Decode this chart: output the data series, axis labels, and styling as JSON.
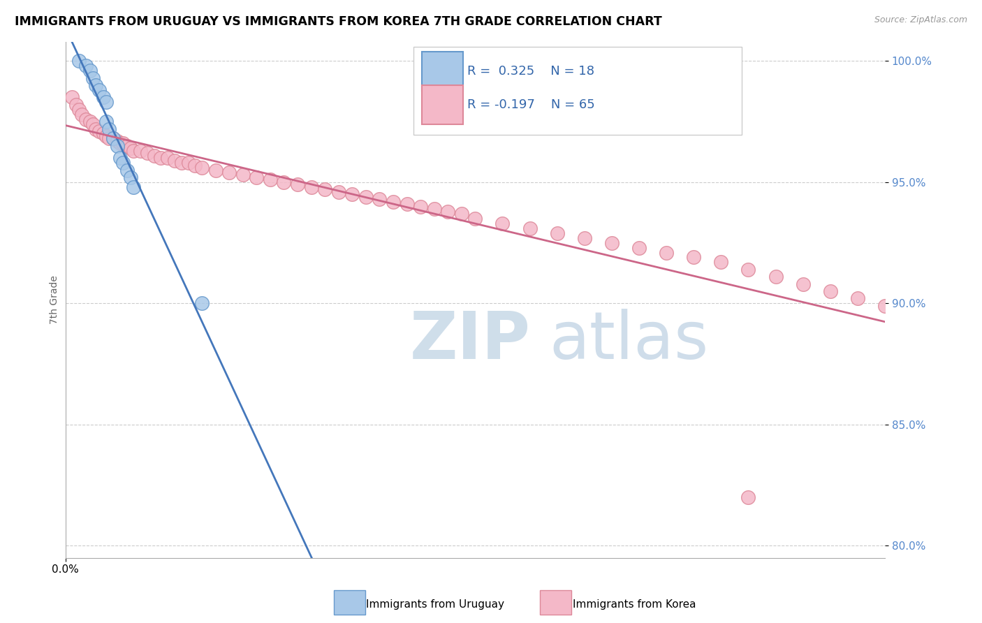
{
  "title": "IMMIGRANTS FROM URUGUAY VS IMMIGRANTS FROM KOREA 7TH GRADE CORRELATION CHART",
  "source_text": "Source: ZipAtlas.com",
  "ylabel": "7th Grade",
  "xlim": [
    0.0,
    0.006
  ],
  "ylim": [
    0.795,
    1.008
  ],
  "yticks": [
    0.8,
    0.85,
    0.9,
    0.95,
    1.0
  ],
  "ytick_labels": [
    "80.0%",
    "85.0%",
    "90.0%",
    "95.0%",
    "100.0%"
  ],
  "xtick_positions": [
    0.0
  ],
  "xtick_labels": [
    "0.0%"
  ],
  "r_uruguay": 0.325,
  "n_uruguay": 18,
  "r_korea": -0.197,
  "n_korea": 65,
  "blue_color": "#a8c8e8",
  "blue_edge_color": "#6699cc",
  "blue_line_color": "#4477bb",
  "pink_color": "#f4b8c8",
  "pink_edge_color": "#dd8899",
  "pink_line_color": "#cc6688",
  "watermark_zip": "ZIP",
  "watermark_atlas": "atlas",
  "watermark_color_zip": "#b0c8dc",
  "watermark_color_atlas": "#88aacc",
  "uruguay_x": [
    0.0001,
    0.00015,
    0.00018,
    0.0002,
    0.00022,
    0.00025,
    0.00028,
    0.0003,
    0.0003,
    0.00032,
    0.00035,
    0.00038,
    0.0004,
    0.00042,
    0.00045,
    0.00048,
    0.0005,
    0.001
  ],
  "uruguay_y": [
    1.0,
    0.998,
    0.996,
    0.993,
    0.99,
    0.988,
    0.985,
    0.983,
    0.975,
    0.972,
    0.968,
    0.965,
    0.96,
    0.958,
    0.955,
    0.952,
    0.948,
    0.9
  ],
  "korea_x": [
    5e-05,
    8e-05,
    0.0001,
    0.00012,
    0.00015,
    0.00018,
    0.0002,
    0.00022,
    0.00025,
    0.00028,
    0.0003,
    0.00032,
    0.00035,
    0.00038,
    0.0004,
    0.00042,
    0.00045,
    0.00048,
    0.0005,
    0.00055,
    0.0006,
    0.00065,
    0.0007,
    0.00075,
    0.0008,
    0.00085,
    0.0009,
    0.00095,
    0.001,
    0.0011,
    0.0012,
    0.0013,
    0.0014,
    0.0015,
    0.0016,
    0.0017,
    0.0018,
    0.0019,
    0.002,
    0.0021,
    0.0022,
    0.0023,
    0.0024,
    0.0025,
    0.0026,
    0.0027,
    0.0028,
    0.0029,
    0.003,
    0.0032,
    0.0034,
    0.0036,
    0.0038,
    0.004,
    0.0042,
    0.0044,
    0.0046,
    0.0048,
    0.005,
    0.0052,
    0.0054,
    0.0056,
    0.0058,
    0.006,
    0.005
  ],
  "korea_y": [
    0.985,
    0.982,
    0.98,
    0.978,
    0.976,
    0.975,
    0.974,
    0.972,
    0.971,
    0.97,
    0.969,
    0.968,
    0.968,
    0.967,
    0.966,
    0.966,
    0.965,
    0.964,
    0.963,
    0.963,
    0.962,
    0.961,
    0.96,
    0.96,
    0.959,
    0.958,
    0.958,
    0.957,
    0.956,
    0.955,
    0.954,
    0.953,
    0.952,
    0.951,
    0.95,
    0.949,
    0.948,
    0.947,
    0.946,
    0.945,
    0.944,
    0.943,
    0.942,
    0.941,
    0.94,
    0.939,
    0.938,
    0.937,
    0.935,
    0.933,
    0.931,
    0.929,
    0.927,
    0.925,
    0.923,
    0.921,
    0.919,
    0.917,
    0.914,
    0.911,
    0.908,
    0.905,
    0.902,
    0.899,
    0.82
  ]
}
